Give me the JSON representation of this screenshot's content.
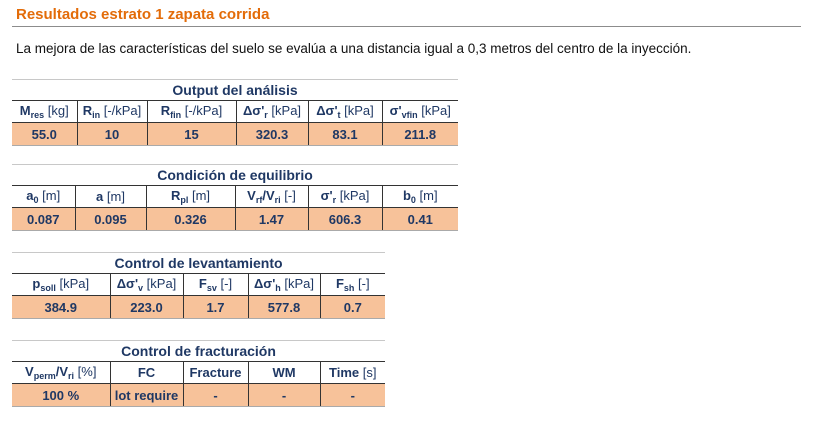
{
  "title": "Resultados estrato 1 zapata corrida",
  "intro": "La mejora de las características del suelo se evalúa a una distancia igual a 0,3 metros del centro de la inyección.",
  "colors": {
    "title": "#e36c09",
    "text": "#1f3864",
    "value_fill": "#f7c29a"
  },
  "tables": [
    {
      "caption": "Output del análisis",
      "headers": [
        [
          {
            "t": "M"
          },
          {
            "s": "res"
          },
          {
            "u": " [kg]"
          }
        ],
        [
          {
            "t": "R"
          },
          {
            "s": "in"
          },
          {
            "u": " [-/kPa]"
          }
        ],
        [
          {
            "t": "R"
          },
          {
            "s": "fin"
          },
          {
            "u": " [-/kPa]"
          }
        ],
        [
          {
            "t": "Δσ'"
          },
          {
            "s": "r"
          },
          {
            "u": " [kPa]"
          }
        ],
        [
          {
            "t": "Δσ'"
          },
          {
            "s": "t"
          },
          {
            "u": " [kPa]"
          }
        ],
        [
          {
            "t": "σ'"
          },
          {
            "s": "vfin"
          },
          {
            "u": " [kPa]"
          }
        ]
      ],
      "values": [
        "55.0",
        "10",
        "15",
        "320.3",
        "83.1",
        "211.8"
      ]
    },
    {
      "caption": "Condición de equilibrio",
      "headers": [
        [
          {
            "t": "a"
          },
          {
            "s": "0"
          },
          {
            "u": " [m]"
          }
        ],
        [
          {
            "t": "a"
          },
          {
            "u": " [m]"
          }
        ],
        [
          {
            "t": "R"
          },
          {
            "s": "pl"
          },
          {
            "u": " [m]"
          }
        ],
        [
          {
            "t": "V"
          },
          {
            "s": "rf"
          },
          {
            "t": "/V"
          },
          {
            "s": "ri"
          },
          {
            "u": " [-]"
          }
        ],
        [
          {
            "t": "σ'"
          },
          {
            "s": "r"
          },
          {
            "u": " [kPa]"
          }
        ],
        [
          {
            "t": "b"
          },
          {
            "s": "0"
          },
          {
            "u": " [m]"
          }
        ]
      ],
      "values": [
        "0.087",
        "0.095",
        "0.326",
        "1.47",
        "606.3",
        "0.41"
      ]
    },
    {
      "caption": "Control de levantamiento",
      "headers": [
        [
          {
            "t": "p"
          },
          {
            "s": "soll"
          },
          {
            "u": " [kPa]"
          }
        ],
        [
          {
            "t": "Δσ'"
          },
          {
            "s": "v"
          },
          {
            "u": " [kPa]"
          }
        ],
        [
          {
            "t": "F"
          },
          {
            "s": "sv"
          },
          {
            "u": " [-]"
          }
        ],
        [
          {
            "t": "Δσ'"
          },
          {
            "s": "h"
          },
          {
            "u": " [kPa]"
          }
        ],
        [
          {
            "t": "F"
          },
          {
            "s": "sh"
          },
          {
            "u": " [-]"
          }
        ]
      ],
      "values": [
        "384.9",
        "223.0",
        "1.7",
        "577.8",
        "0.7"
      ]
    },
    {
      "caption": "Control de fracturación",
      "headers": [
        [
          {
            "t": "V"
          },
          {
            "s": "perm"
          },
          {
            "t": "/V"
          },
          {
            "s": "ri"
          },
          {
            "u": " [%]"
          }
        ],
        [
          {
            "t": "FC"
          }
        ],
        [
          {
            "t": "Fracture"
          }
        ],
        [
          {
            "t": "WM"
          }
        ],
        [
          {
            "t": "Time"
          },
          {
            "u": " [s]"
          }
        ]
      ],
      "values": [
        "100 %",
        "lot require",
        "-",
        "-",
        "-"
      ]
    }
  ]
}
